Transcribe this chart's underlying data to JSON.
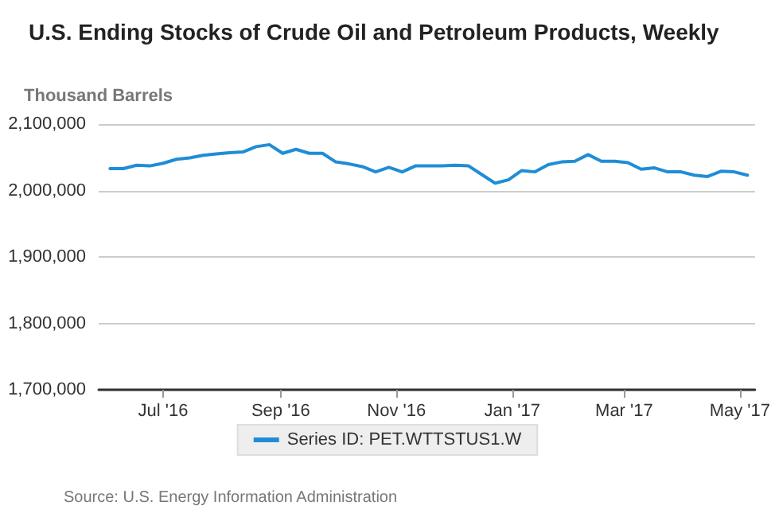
{
  "chart_data": {
    "type": "line",
    "title": "U.S. Ending Stocks of Crude Oil and Petroleum Products, Weekly",
    "ylabel": "Thousand Barrels",
    "annotations": [
      "Source: U.S. Energy Information Administration"
    ],
    "x": [
      "2016-06-03",
      "2016-06-10",
      "2016-06-17",
      "2016-06-24",
      "2016-07-01",
      "2016-07-08",
      "2016-07-15",
      "2016-07-22",
      "2016-07-29",
      "2016-08-05",
      "2016-08-12",
      "2016-08-19",
      "2016-08-26",
      "2016-09-02",
      "2016-09-09",
      "2016-09-16",
      "2016-09-23",
      "2016-09-30",
      "2016-10-07",
      "2016-10-14",
      "2016-10-21",
      "2016-10-28",
      "2016-11-04",
      "2016-11-11",
      "2016-11-18",
      "2016-11-25",
      "2016-12-02",
      "2016-12-09",
      "2016-12-16",
      "2016-12-23",
      "2016-12-30",
      "2017-01-06",
      "2017-01-13",
      "2017-01-20",
      "2017-01-27",
      "2017-02-03",
      "2017-02-10",
      "2017-02-17",
      "2017-02-24",
      "2017-03-03",
      "2017-03-10",
      "2017-03-17",
      "2017-03-24",
      "2017-03-31",
      "2017-04-07",
      "2017-04-14",
      "2017-04-21",
      "2017-04-28",
      "2017-05-05"
    ],
    "series": [
      {
        "name": "Series ID: PET.WTTSTUS1.W",
        "color": "#1f8dd6",
        "values": [
          2033000,
          2033000,
          2038000,
          2037000,
          2041000,
          2047000,
          2049000,
          2053000,
          2055000,
          2057000,
          2058000,
          2066000,
          2069000,
          2056000,
          2062000,
          2056000,
          2056000,
          2043000,
          2040000,
          2036000,
          2028000,
          2035000,
          2028000,
          2037000,
          2037000,
          2037000,
          2038000,
          2037000,
          2024000,
          2011000,
          2016000,
          2030000,
          2028000,
          2039000,
          2043000,
          2044000,
          2054000,
          2044000,
          2044000,
          2042000,
          2032000,
          2034000,
          2028000,
          2028000,
          2023000,
          2021000,
          2029000,
          2028000,
          2023000
        ]
      }
    ],
    "xlim": [
      "2016-05-28",
      "2017-05-09"
    ],
    "xticks": [
      {
        "value": "2016-07-01",
        "label": "Jul '16"
      },
      {
        "value": "2016-09-01",
        "label": "Sep '16"
      },
      {
        "value": "2016-11-01",
        "label": "Nov '16"
      },
      {
        "value": "2017-01-01",
        "label": "Jan '17"
      },
      {
        "value": "2017-03-01",
        "label": "Mar '17"
      },
      {
        "value": "2017-05-01",
        "label": "May '17"
      }
    ],
    "ylim": [
      1700000,
      2100000
    ],
    "yticks": [
      {
        "value": 1700000,
        "label": "1,700,000"
      },
      {
        "value": 1800000,
        "label": "1,800,000"
      },
      {
        "value": 1900000,
        "label": "1,900,000"
      },
      {
        "value": 2000000,
        "label": "2,000,000"
      },
      {
        "value": 2100000,
        "label": "2,100,000"
      }
    ],
    "grid": "y",
    "legend": "bottom",
    "marker": "none",
    "line_style": "solid"
  }
}
